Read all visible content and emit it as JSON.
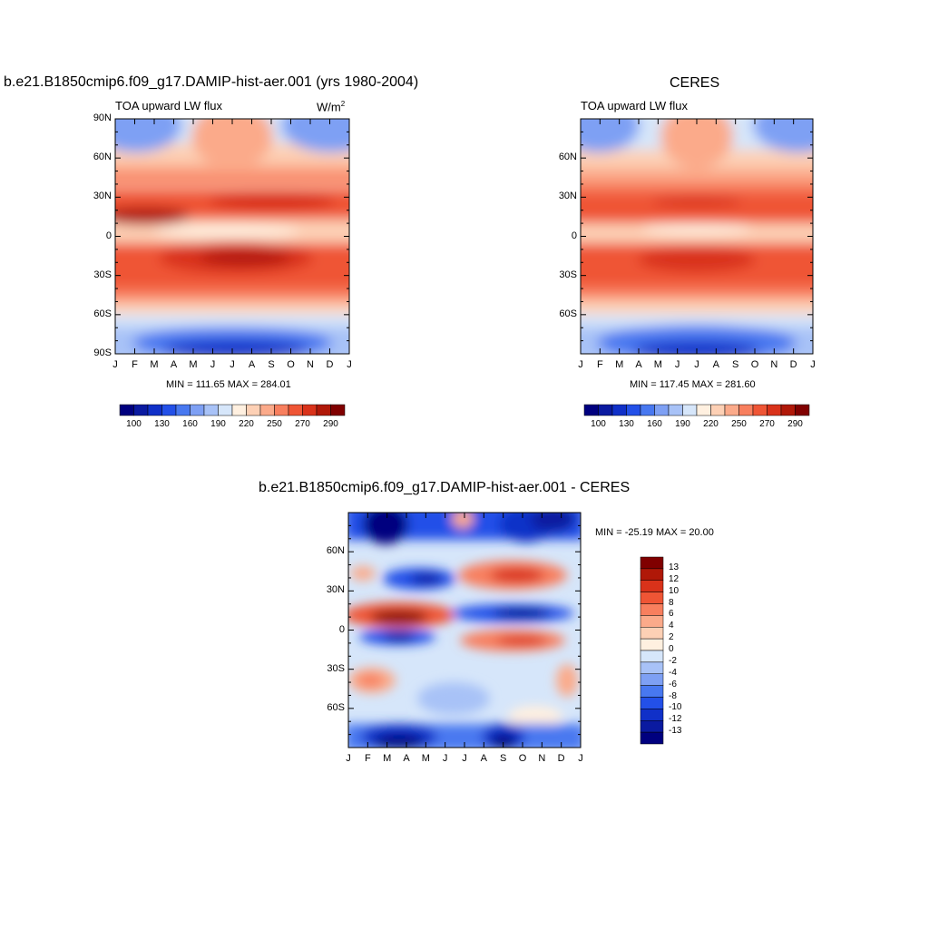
{
  "chart_data": [
    {
      "type": "heatmap",
      "title": "b.e21.B1850cmip6.f09_g17.DAMIP-hist-aer.001 (yrs 1980-2004)",
      "left_label": "TOA upward LW flux",
      "units": "W/m",
      "units_sup": "2",
      "x_ticks": [
        "J",
        "F",
        "M",
        "A",
        "M",
        "J",
        "J",
        "A",
        "S",
        "O",
        "N",
        "D",
        "J"
      ],
      "y_ticks": [
        "90N",
        "60N",
        "30N",
        "0",
        "30S",
        "60S",
        "90S"
      ],
      "y_values": [
        90,
        60,
        30,
        0,
        -30,
        -60,
        -90
      ],
      "ylim": [
        -90,
        90
      ],
      "stats": "MIN = 111.65 MAX = 284.01",
      "colorbar_labels": [
        "100",
        "130",
        "160",
        "190",
        "220",
        "250",
        "270",
        "290"
      ]
    },
    {
      "type": "heatmap",
      "title": "CERES",
      "left_label": "TOA upward LW flux",
      "x_ticks": [
        "J",
        "F",
        "M",
        "A",
        "M",
        "J",
        "J",
        "A",
        "S",
        "O",
        "N",
        "D",
        "J"
      ],
      "y_ticks": [
        "60N",
        "30N",
        "0",
        "30S",
        "60S"
      ],
      "y_values": [
        60,
        30,
        0,
        -30,
        -60
      ],
      "ylim": [
        -90,
        90
      ],
      "stats": "MIN = 117.45 MAX = 281.60",
      "colorbar_labels": [
        "100",
        "130",
        "160",
        "190",
        "220",
        "250",
        "270",
        "290"
      ]
    },
    {
      "type": "heatmap",
      "title": "b.e21.B1850cmip6.f09_g17.DAMIP-hist-aer.001 - CERES",
      "x_ticks": [
        "J",
        "F",
        "M",
        "A",
        "M",
        "J",
        "J",
        "A",
        "S",
        "O",
        "N",
        "D",
        "J"
      ],
      "y_ticks": [
        "60N",
        "30N",
        "0",
        "30S",
        "60S"
      ],
      "y_values": [
        60,
        30,
        0,
        -30,
        -60
      ],
      "ylim": [
        -90,
        90
      ],
      "stats": "MIN = -25.19 MAX =  20.00",
      "colorbar_labels": [
        "13",
        "12",
        "10",
        "8",
        "6",
        "4",
        "2",
        "0",
        "-2",
        "-4",
        "-6",
        "-8",
        "-10",
        "-12",
        "-13"
      ]
    }
  ],
  "palette_flux": [
    "#00007f",
    "#0a1aa0",
    "#1030c8",
    "#2350e8",
    "#4878f0",
    "#7ea0f4",
    "#a8c2f7",
    "#d6e6fa",
    "#fff0e0",
    "#fdd0b5",
    "#fbaa8a",
    "#f87f5e",
    "#ef5535",
    "#d9321a",
    "#b01808",
    "#800000"
  ],
  "palette_diff": [
    "#800000",
    "#b01808",
    "#d9321a",
    "#ef5535",
    "#f87f5e",
    "#fbaa8a",
    "#fdd0b5",
    "#fff0e0",
    "#d6e6fa",
    "#a8c2f7",
    "#7ea0f4",
    "#4878f0",
    "#2350e8",
    "#1030c8",
    "#0a1aa0",
    "#00007f"
  ]
}
